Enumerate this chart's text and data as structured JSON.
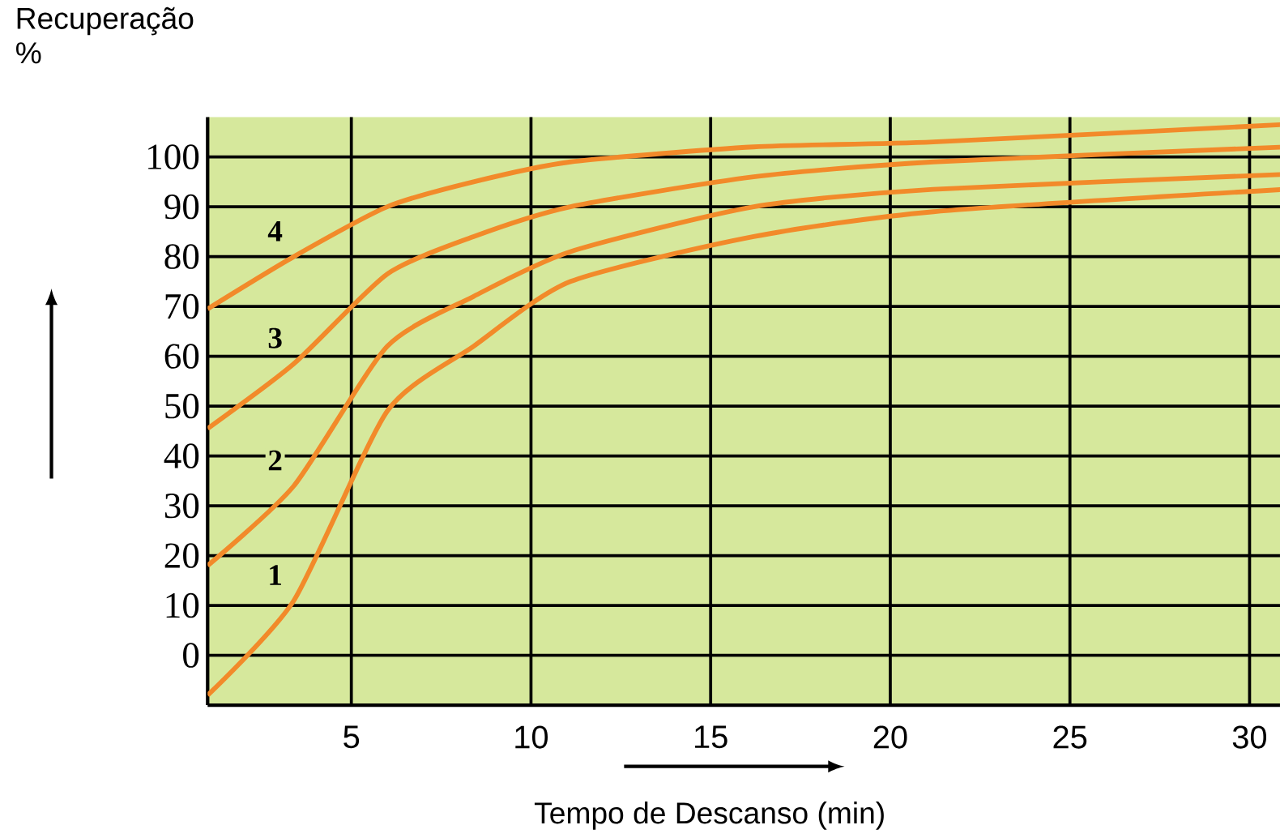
{
  "chart_data": {
    "type": "line",
    "xlabel": "Tempo de Descanso (min)",
    "ylabel": "Recuperação %",
    "xlim": [
      1,
      31
    ],
    "ylim": [
      -10,
      108
    ],
    "xticks": [
      5,
      10,
      15,
      20,
      25,
      30
    ],
    "yticks": [
      0,
      10,
      20,
      30,
      40,
      50,
      60,
      70,
      80,
      90,
      100
    ],
    "grid": true,
    "x": [
      1,
      3.4,
      6,
      8.4,
      11.1,
      16.2,
      21.2,
      31
    ],
    "series": [
      {
        "name": "1",
        "color": "#f28a2a",
        "values": [
          -8,
          11,
          49,
          62,
          75,
          84,
          89,
          93.5
        ]
      },
      {
        "name": "2",
        "color": "#f28a2a",
        "values": [
          18,
          34,
          62,
          72,
          81,
          90,
          93.5,
          96.5
        ]
      },
      {
        "name": "3",
        "color": "#f28a2a",
        "values": [
          45.5,
          58.5,
          76.5,
          84,
          90,
          96,
          99,
          102
        ]
      },
      {
        "name": "4",
        "color": "#f28a2a",
        "values": [
          69.5,
          80,
          90,
          95,
          99,
          102,
          103,
          106.5
        ]
      }
    ]
  }
}
